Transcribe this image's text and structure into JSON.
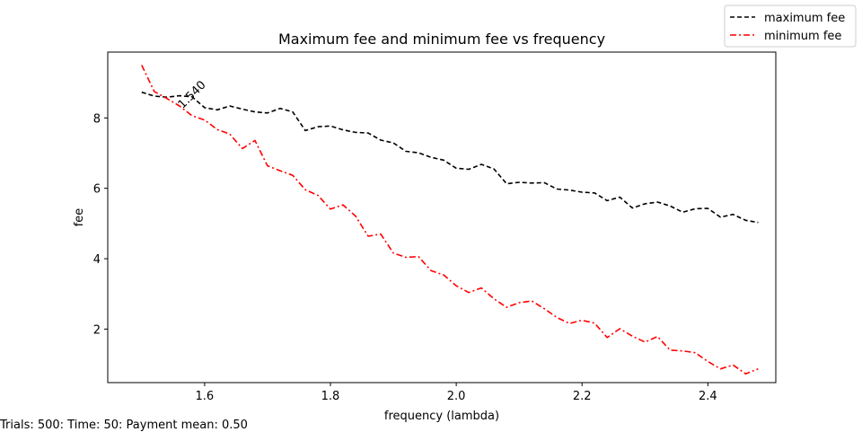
{
  "footer_text": "Trials: 500: Time: 50: Payment mean: 0.50",
  "chart_data": {
    "type": "line",
    "title": "Maximum fee and minimum fee vs frequency",
    "xlabel": "frequency (lambda)",
    "ylabel": "fee",
    "xlim": [
      1.446,
      2.508
    ],
    "ylim": [
      0.48,
      9.87
    ],
    "xticks": [
      1.6,
      1.8,
      2.0,
      2.2,
      2.4
    ],
    "yticks": [
      2,
      4,
      6,
      8
    ],
    "xtick_labels": [
      "1.6",
      "1.8",
      "2.0",
      "2.2",
      "2.4"
    ],
    "ytick_labels": [
      "2",
      "4",
      "6",
      "8"
    ],
    "grid": false,
    "legend": "top-right outside plot",
    "annotation": {
      "text": "1.540",
      "x": 1.565,
      "y": 8.25,
      "rotation": -45
    },
    "x": [
      1.5,
      1.52,
      1.54,
      1.56,
      1.58,
      1.6,
      1.62,
      1.64,
      1.66,
      1.68,
      1.7,
      1.72,
      1.74,
      1.76,
      1.78,
      1.8,
      1.82,
      1.84,
      1.86,
      1.88,
      1.9,
      1.92,
      1.94,
      1.96,
      1.98,
      2.0,
      2.02,
      2.04,
      2.06,
      2.08,
      2.1,
      2.12,
      2.14,
      2.16,
      2.18,
      2.2,
      2.22,
      2.24,
      2.26,
      2.28,
      2.3,
      2.32,
      2.34,
      2.36,
      2.38,
      2.4,
      2.42,
      2.44,
      2.46,
      2.48
    ],
    "series": [
      {
        "name": "maximum fee",
        "color": "#000000",
        "dash": "5,3",
        "values": [
          8.73,
          8.62,
          8.59,
          8.63,
          8.6,
          8.29,
          8.23,
          8.34,
          8.25,
          8.17,
          8.14,
          8.27,
          8.17,
          7.64,
          7.75,
          7.77,
          7.66,
          7.59,
          7.57,
          7.37,
          7.29,
          7.05,
          7.01,
          6.88,
          6.8,
          6.57,
          6.54,
          6.68,
          6.55,
          6.13,
          6.17,
          6.15,
          6.16,
          5.98,
          5.95,
          5.89,
          5.87,
          5.65,
          5.75,
          5.44,
          5.56,
          5.61,
          5.5,
          5.32,
          5.42,
          5.43,
          5.18,
          5.26,
          5.09,
          5.03
        ]
      },
      {
        "name": "minimum fee",
        "color": "#ff0000",
        "dash": "7,3,2,3",
        "values": [
          9.5,
          8.75,
          8.55,
          8.34,
          8.06,
          7.94,
          7.67,
          7.54,
          7.13,
          7.36,
          6.64,
          6.5,
          6.37,
          5.96,
          5.8,
          5.41,
          5.53,
          5.21,
          4.64,
          4.7,
          4.16,
          4.04,
          4.06,
          3.66,
          3.54,
          3.23,
          3.04,
          3.17,
          2.86,
          2.62,
          2.75,
          2.8,
          2.58,
          2.33,
          2.16,
          2.25,
          2.17,
          1.76,
          2.01,
          1.8,
          1.63,
          1.79,
          1.4,
          1.38,
          1.33,
          1.08,
          0.87,
          0.98,
          0.73,
          0.87
        ]
      }
    ]
  }
}
